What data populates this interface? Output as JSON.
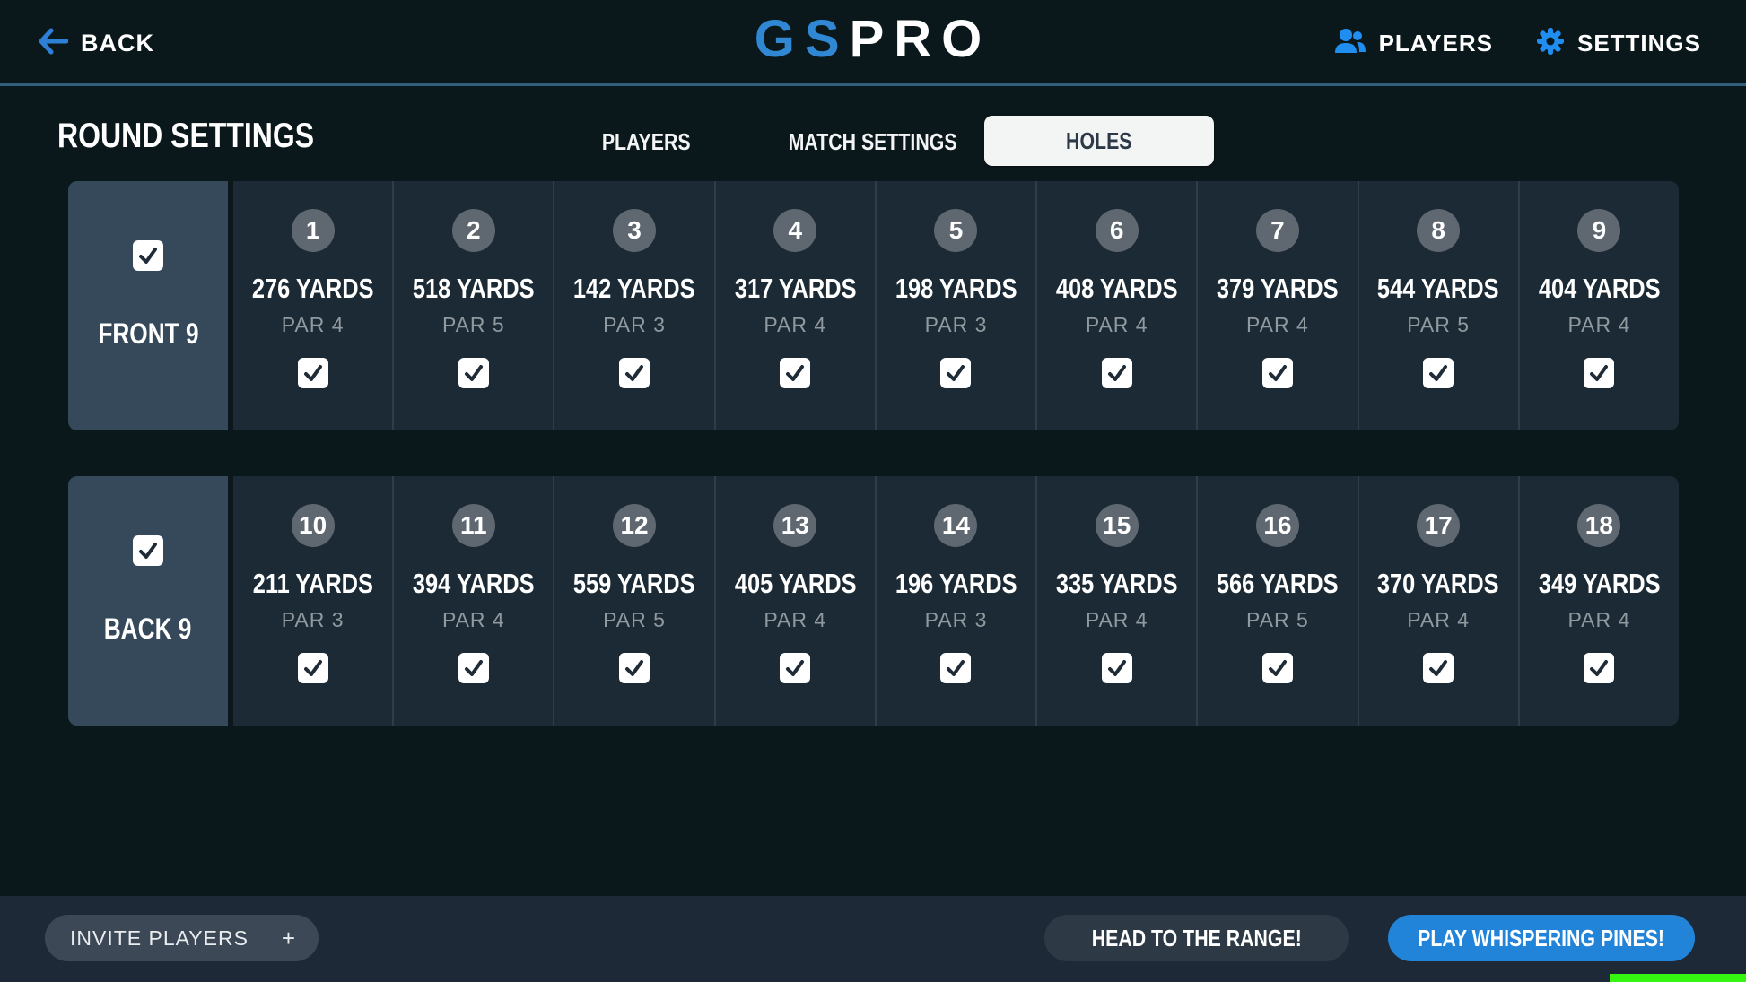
{
  "header": {
    "back_label": "BACK",
    "logo_part_blue": "GS",
    "logo_part_white": "PRO",
    "players_label": "PLAYERS",
    "settings_label": "SETTINGS"
  },
  "round_settings": {
    "title": "ROUND SETTINGS",
    "tabs": [
      {
        "label": "PLAYERS",
        "active": false
      },
      {
        "label": "MATCH SETTINGS",
        "active": false
      },
      {
        "label": "HOLES",
        "active": true
      }
    ]
  },
  "sections": [
    {
      "label": "FRONT 9",
      "checked": true,
      "holes": [
        {
          "number": "1",
          "yards": "276 YARDS",
          "par": "PAR 4",
          "checked": true
        },
        {
          "number": "2",
          "yards": "518 YARDS",
          "par": "PAR 5",
          "checked": true
        },
        {
          "number": "3",
          "yards": "142 YARDS",
          "par": "PAR 3",
          "checked": true
        },
        {
          "number": "4",
          "yards": "317 YARDS",
          "par": "PAR 4",
          "checked": true
        },
        {
          "number": "5",
          "yards": "198 YARDS",
          "par": "PAR 3",
          "checked": true
        },
        {
          "number": "6",
          "yards": "408 YARDS",
          "par": "PAR 4",
          "checked": true
        },
        {
          "number": "7",
          "yards": "379 YARDS",
          "par": "PAR 4",
          "checked": true
        },
        {
          "number": "8",
          "yards": "544 YARDS",
          "par": "PAR 5",
          "checked": true
        },
        {
          "number": "9",
          "yards": "404 YARDS",
          "par": "PAR 4",
          "checked": true
        }
      ]
    },
    {
      "label": "BACK 9",
      "checked": true,
      "holes": [
        {
          "number": "10",
          "yards": "211 YARDS",
          "par": "PAR 3",
          "checked": true
        },
        {
          "number": "11",
          "yards": "394 YARDS",
          "par": "PAR 4",
          "checked": true
        },
        {
          "number": "12",
          "yards": "559 YARDS",
          "par": "PAR 5",
          "checked": true
        },
        {
          "number": "13",
          "yards": "405 YARDS",
          "par": "PAR 4",
          "checked": true
        },
        {
          "number": "14",
          "yards": "196 YARDS",
          "par": "PAR 3",
          "checked": true
        },
        {
          "number": "15",
          "yards": "335 YARDS",
          "par": "PAR 4",
          "checked": true
        },
        {
          "number": "16",
          "yards": "566 YARDS",
          "par": "PAR 5",
          "checked": true
        },
        {
          "number": "17",
          "yards": "370 YARDS",
          "par": "PAR 4",
          "checked": true
        },
        {
          "number": "18",
          "yards": "349 YARDS",
          "par": "PAR 4",
          "checked": true
        }
      ]
    }
  ],
  "footer": {
    "invite_label": "INVITE PLAYERS",
    "invite_plus": "+",
    "range_label": "HEAD TO THE RANGE!",
    "play_label": "PLAY WHISPERING PINES!"
  },
  "colors": {
    "accent_blue": "#2184d8",
    "logo_blue": "#3088d4",
    "icon_blue": "#1f8ef0",
    "topbar_divider": "#31607e",
    "panel_bg": "#1b2a34",
    "label_cell_bg": "#36495a",
    "footer_bg": "#1d2936",
    "active_tab_bg": "#f3f4f4",
    "progress_green": "#35f710"
  }
}
